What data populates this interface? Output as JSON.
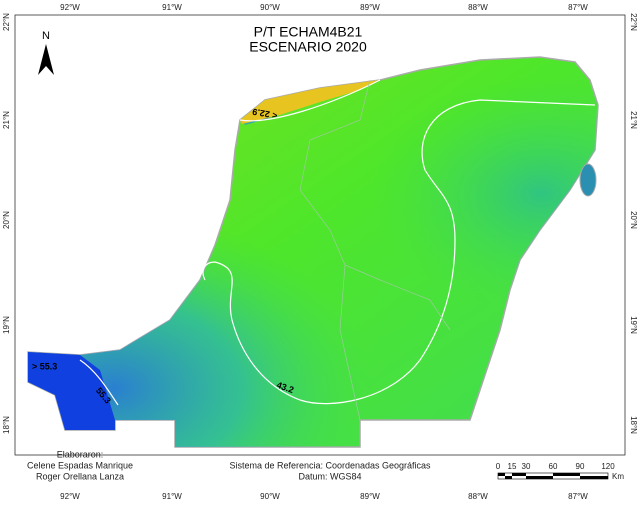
{
  "header": {
    "title": "P/T ECHAM4B21",
    "subtitle": "ESCENARIO 2020"
  },
  "north": "N",
  "lon_labels": [
    "92°W",
    "91°W",
    "90°W",
    "89°W",
    "88°W",
    "87°W"
  ],
  "lat_labels": [
    "22°N",
    "21°N",
    "20°N",
    "19°N",
    "18°N"
  ],
  "contours": [
    "< 22.9",
    "43.2",
    "55.3",
    "> 55.3"
  ],
  "credits": {
    "heading": "Elaboraron:",
    "authors": [
      "Celene Espadas Manrique",
      "Roger Orellana Lanza"
    ]
  },
  "reference": {
    "system": "Sistema de Referencia: Coordenadas Geográficas",
    "datum": "Datum: WGS84"
  },
  "scale": {
    "ticks": [
      "0",
      "15",
      "30",
      "60",
      "90",
      "120"
    ],
    "unit": "Km"
  }
}
